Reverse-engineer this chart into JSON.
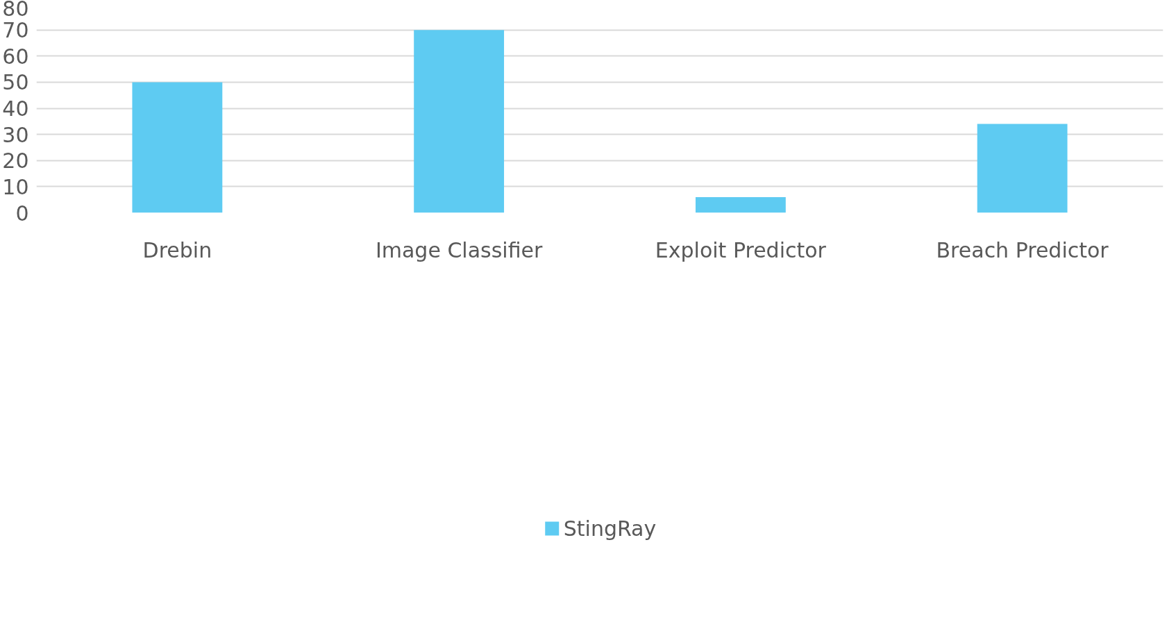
{
  "chart_data": {
    "type": "bar",
    "categories": [
      "Drebin",
      "Image Classifier",
      "Exploit Predictor",
      "Breach Predictor"
    ],
    "series": [
      {
        "name": "StingRay",
        "color": "#5ecbf2",
        "values": [
          50,
          70,
          6,
          34
        ]
      }
    ],
    "ylim": [
      0,
      80
    ],
    "yticks": [
      0,
      10,
      20,
      30,
      40,
      50,
      60,
      70,
      80
    ],
    "grid": "y",
    "legend": "bottom"
  }
}
